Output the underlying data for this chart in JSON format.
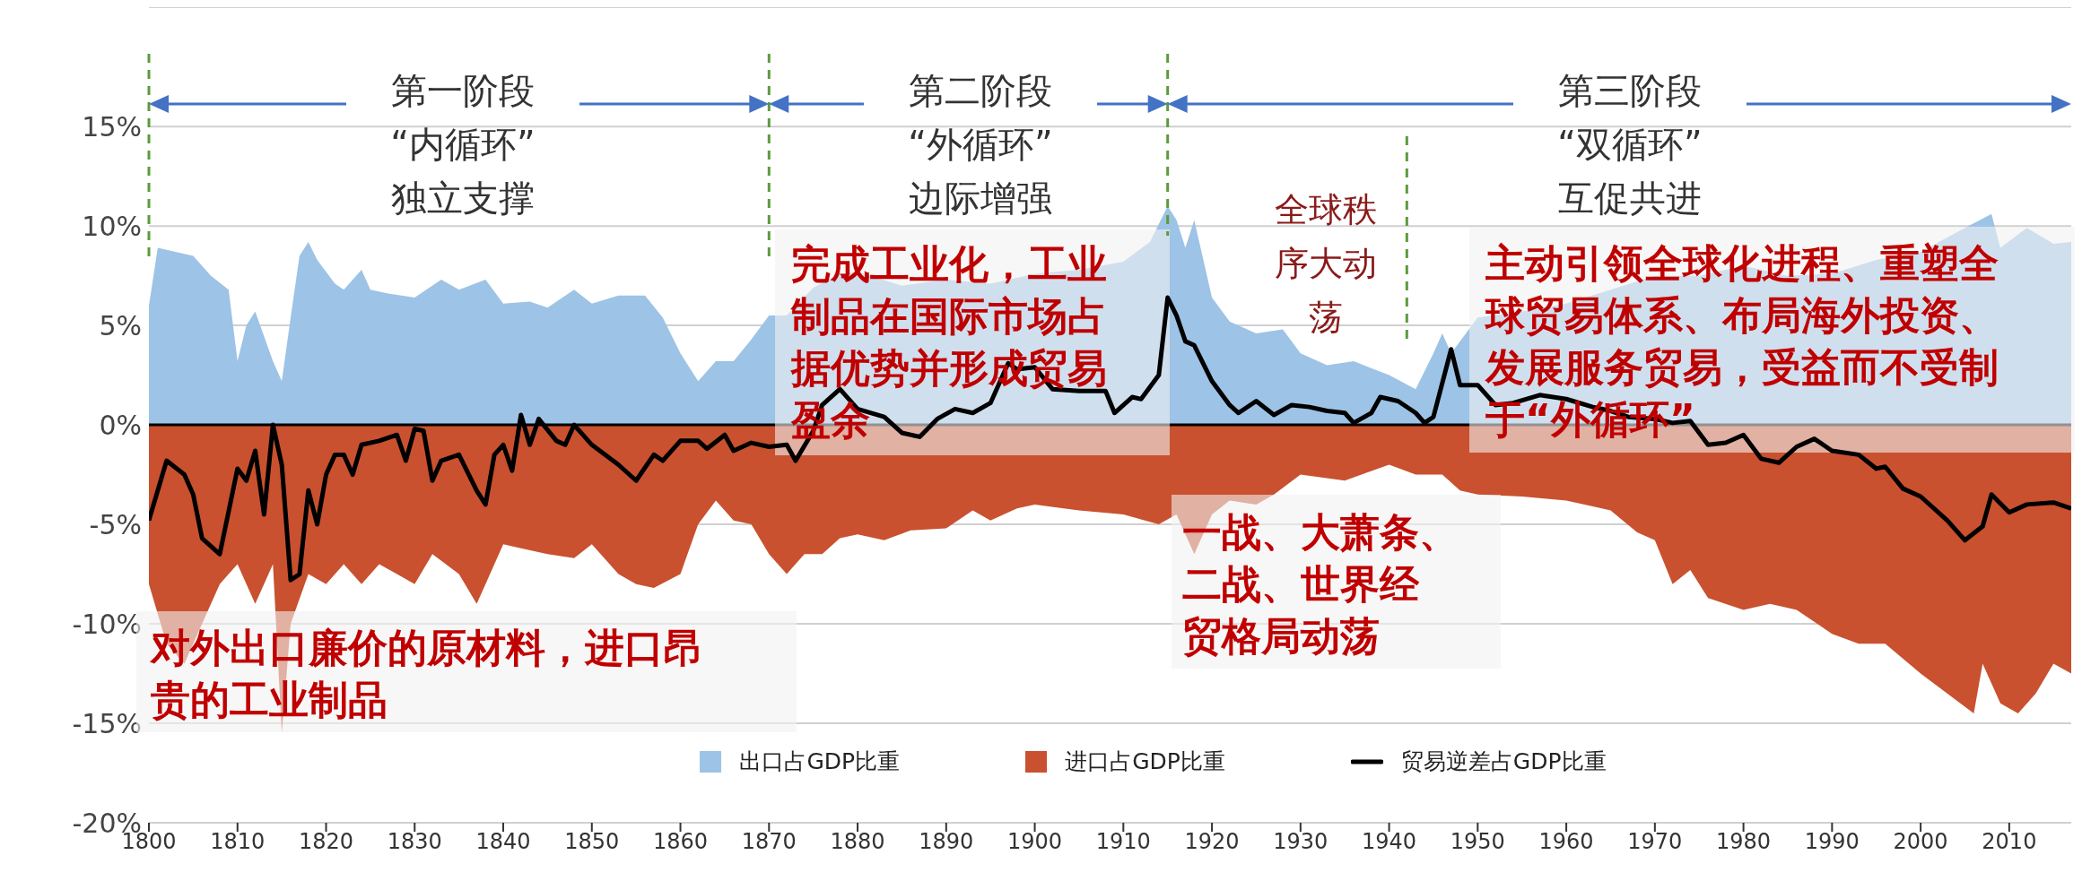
{
  "chart_data": {
    "type": "area",
    "xlim": [
      1800,
      2017
    ],
    "xticks": [
      1800,
      1810,
      1820,
      1830,
      1840,
      1850,
      1860,
      1870,
      1880,
      1890,
      1900,
      1910,
      1920,
      1930,
      1940,
      1950,
      1960,
      1970,
      1980,
      1990,
      2000,
      2010
    ],
    "ylim": [
      -20,
      21
    ],
    "yticks": [
      {
        "value": -20,
        "label": "-20%"
      },
      {
        "value": -15,
        "label": "-15%"
      },
      {
        "value": -10,
        "label": "-10%"
      },
      {
        "value": -5,
        "label": "-5%"
      },
      {
        "value": 0,
        "label": "0%"
      },
      {
        "value": 5,
        "label": "5%"
      },
      {
        "value": 10,
        "label": "10%"
      },
      {
        "value": 15,
        "label": "15%"
      }
    ],
    "grid": "y",
    "legend": "bottom",
    "series": [
      {
        "name": "出口占GDP比重",
        "color": "#9dc3e6",
        "x": [
          1800,
          1801,
          1803,
          1805,
          1807,
          1809,
          1810,
          1811,
          1812,
          1814,
          1815,
          1816,
          1817,
          1818,
          1819,
          1821,
          1822,
          1824,
          1825,
          1827,
          1830,
          1833,
          1835,
          1838,
          1840,
          1843,
          1845,
          1848,
          1850,
          1853,
          1856,
          1858,
          1860,
          1862,
          1864,
          1866,
          1868,
          1870,
          1872,
          1875,
          1878,
          1880,
          1885,
          1890,
          1895,
          1900,
          1905,
          1910,
          1913,
          1915,
          1916,
          1917,
          1918,
          1920,
          1922,
          1925,
          1928,
          1930,
          1933,
          1936,
          1940,
          1943,
          1945,
          1946,
          1947,
          1950,
          1955,
          1960,
          1965,
          1970,
          1975,
          1980,
          1985,
          1990,
          1995,
          2000,
          2005,
          2008,
          2009,
          2012,
          2015,
          2017
        ],
        "values": [
          6,
          8.9,
          8.7,
          8.5,
          7.5,
          6.8,
          3.2,
          5,
          5.7,
          3.2,
          2.2,
          5.4,
          8.5,
          9.2,
          8.3,
          7.1,
          6.8,
          7.8,
          6.8,
          6.6,
          6.4,
          7.3,
          6.8,
          7.3,
          6.1,
          6.2,
          5.9,
          6.8,
          6.1,
          6.5,
          6.5,
          5.4,
          3.6,
          2.2,
          3.2,
          3.2,
          4.3,
          5.5,
          5.5,
          6.9,
          7.6,
          7.7,
          7,
          7.3,
          7.1,
          7.6,
          7.8,
          8.2,
          9.2,
          11,
          10.3,
          8.9,
          10.3,
          6.4,
          5.2,
          4.6,
          4.8,
          3.6,
          3,
          3.2,
          2.5,
          1.8,
          3.6,
          4.6,
          3.6,
          5.4,
          5.7,
          6.1,
          6.8,
          7.5,
          7.5,
          8,
          7.5,
          7.6,
          8.3,
          8.7,
          9.9,
          10.6,
          8.9,
          9.9,
          9.1,
          9.2
        ]
      },
      {
        "name": "进口占GDP比重",
        "color": "#c9512f",
        "x": [
          1800,
          1802,
          1804,
          1806,
          1808,
          1810,
          1812,
          1814,
          1815,
          1816,
          1818,
          1820,
          1822,
          1824,
          1826,
          1828,
          1830,
          1832,
          1835,
          1837,
          1838,
          1840,
          1842,
          1845,
          1848,
          1850,
          1853,
          1855,
          1857,
          1860,
          1862,
          1864,
          1866,
          1868,
          1870,
          1872,
          1874,
          1876,
          1878,
          1880,
          1883,
          1886,
          1890,
          1893,
          1895,
          1898,
          1900,
          1905,
          1910,
          1914,
          1916,
          1918,
          1920,
          1922,
          1925,
          1927,
          1930,
          1935,
          1940,
          1943,
          1946,
          1948,
          1950,
          1955,
          1960,
          1965,
          1968,
          1970,
          1972,
          1974,
          1976,
          1980,
          1983,
          1986,
          1990,
          1993,
          1996,
          2000,
          2003,
          2006,
          2007,
          2009,
          2011,
          2013,
          2015,
          2017
        ],
        "values": [
          -8,
          -11,
          -12,
          -10,
          -8,
          -7,
          -9,
          -7,
          -15.5,
          -10,
          -7.5,
          -8,
          -7,
          -8,
          -7,
          -7.5,
          -8,
          -6.5,
          -7.5,
          -9,
          -8,
          -6,
          -6.2,
          -6.5,
          -6.7,
          -6,
          -7.5,
          -8,
          -8.2,
          -7.5,
          -5,
          -3.8,
          -4.8,
          -5,
          -6.5,
          -7.5,
          -6.5,
          -6.5,
          -5.7,
          -5.5,
          -5.8,
          -5.3,
          -5.2,
          -4.3,
          -4.8,
          -4.2,
          -4,
          -4.3,
          -4.5,
          -5,
          -4.5,
          -6.5,
          -4.5,
          -3.8,
          -4,
          -3.5,
          -2.5,
          -2.8,
          -2,
          -2.5,
          -2.5,
          -3.3,
          -3.5,
          -3.6,
          -3.8,
          -4.3,
          -5.4,
          -5.8,
          -8,
          -7.3,
          -8.7,
          -9.3,
          -9,
          -9.3,
          -10.5,
          -11,
          -11,
          -12.5,
          -13.5,
          -14.5,
          -12,
          -14,
          -14.5,
          -13.5,
          -12,
          -12.5
        ]
      },
      {
        "name": "贸易逆差占GDP比重",
        "type": "line",
        "color": "#000000",
        "x": [
          1800,
          1802,
          1804,
          1805,
          1806,
          1808,
          1810,
          1811,
          1812,
          1813,
          1814,
          1815,
          1816,
          1817,
          1818,
          1819,
          1820,
          1821,
          1822,
          1823,
          1824,
          1826,
          1828,
          1829,
          1830,
          1831,
          1832,
          1833,
          1835,
          1837,
          1838,
          1839,
          1840,
          1841,
          1842,
          1843,
          1844,
          1846,
          1847,
          1848,
          1850,
          1853,
          1855,
          1857,
          1858,
          1860,
          1862,
          1863,
          1865,
          1866,
          1868,
          1870,
          1872,
          1873,
          1875,
          1876,
          1878,
          1880,
          1883,
          1885,
          1887,
          1889,
          1891,
          1893,
          1895,
          1897,
          1898,
          1900,
          1902,
          1905,
          1908,
          1909,
          1911,
          1912,
          1914,
          1915,
          1916,
          1917,
          1918,
          1920,
          1922,
          1923,
          1925,
          1927,
          1929,
          1931,
          1933,
          1935,
          1936,
          1938,
          1939,
          1941,
          1943,
          1944,
          1945,
          1947,
          1948,
          1950,
          1952,
          1954,
          1957,
          1960,
          1963,
          1965,
          1967,
          1970,
          1972,
          1974,
          1976,
          1978,
          1980,
          1982,
          1984,
          1986,
          1988,
          1990,
          1993,
          1995,
          1996,
          1998,
          2000,
          2003,
          2005,
          2007,
          2008,
          2010,
          2012,
          2015,
          2017
        ],
        "values": [
          -4.8,
          -1.8,
          -2.5,
          -3.5,
          -5.7,
          -6.5,
          -2.2,
          -2.8,
          -1.3,
          -4.5,
          0,
          -2,
          -7.8,
          -7.5,
          -3.3,
          -5,
          -2.5,
          -1.5,
          -1.5,
          -2.5,
          -1,
          -0.8,
          -0.5,
          -1.8,
          -0.2,
          -0.3,
          -2.8,
          -1.8,
          -1.5,
          -3.3,
          -4,
          -1.5,
          -1,
          -2.3,
          0.5,
          -1,
          0.3,
          -0.8,
          -1,
          0,
          -1,
          -2,
          -2.8,
          -1.5,
          -1.8,
          -0.8,
          -0.8,
          -1.2,
          -0.5,
          -1.3,
          -0.9,
          -1.1,
          -1,
          -1.8,
          -0.3,
          1,
          1.8,
          0.8,
          0.4,
          -0.4,
          -0.6,
          0.3,
          0.8,
          0.6,
          1.1,
          3.1,
          2.8,
          2.9,
          1.8,
          1.7,
          1.7,
          0.6,
          1.4,
          1.3,
          2.5,
          6.4,
          5.5,
          4.2,
          4,
          2.2,
          1,
          0.6,
          1.2,
          0.5,
          1,
          0.9,
          0.7,
          0.6,
          0.1,
          0.6,
          1.4,
          1.2,
          0.6,
          0.1,
          0.4,
          3.8,
          2,
          2,
          1,
          1.1,
          1.5,
          1.3,
          0.9,
          0.7,
          0.4,
          0.3,
          0.1,
          0.2,
          -1,
          -0.9,
          -0.5,
          -1.7,
          -1.9,
          -1.1,
          -0.7,
          -1.3,
          -1.5,
          -2.2,
          -2.1,
          -3.2,
          -3.6,
          -4.8,
          -5.8,
          -5.1,
          -3.5,
          -4.4,
          -4,
          -3.9,
          -4.2
        ]
      }
    ],
    "ref_lines": [
      {
        "axis": "y",
        "value": 0,
        "color": "#000000"
      },
      {
        "axis": "x",
        "value": 1800,
        "color": "#5b9b3c",
        "line_style": "dashed"
      },
      {
        "axis": "x",
        "value": 1870,
        "color": "#5b9b3c",
        "line_style": "dashed"
      },
      {
        "axis": "x",
        "value": 1915,
        "color": "#5b9b3c",
        "line_style": "dashed"
      },
      {
        "axis": "x",
        "value": 1942,
        "color": "#5b9b3c",
        "line_style": "dashed"
      }
    ],
    "annotations": [
      "第一阶段\n“内循环”\n独立支撑",
      "第二阶段\n“外循环”\n边际增强",
      "第三阶段\n“双循环”\n互促共进",
      "全球秩序大动荡",
      "对外出口廉价的原材料，进口昂贵的工业制品",
      "完成工业化，工业制品在国际市场占据优势并形成贸易盈余",
      "一战、大萧条、二战、世界经贸格局动荡",
      "主动引领全球化进程、重塑全球贸易体系、布局海外投资、发展服务贸易，受益而不受制于“外循环”"
    ]
  }
}
